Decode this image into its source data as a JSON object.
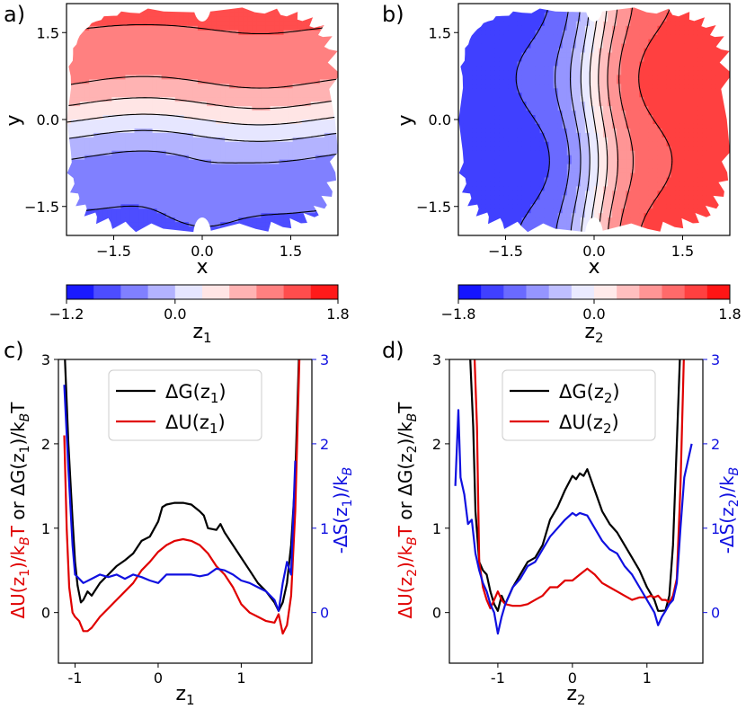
{
  "figure": {
    "panel_labels": [
      "a)",
      "b)",
      "c)",
      "d)"
    ]
  },
  "chart_data": [
    {
      "panel": "a)",
      "type": "heatmap",
      "subtype": "filled-contour",
      "xlabel": "x",
      "ylabel": "y",
      "xlim": [
        -2.3,
        2.3
      ],
      "ylim": [
        -2.0,
        2.0
      ],
      "xticks": [
        -1.5,
        0.0,
        1.5
      ],
      "xtick_labels": [
        "−1.5",
        "0.0",
        "1.5"
      ],
      "yticks": [
        1.5,
        0.0,
        -1.5
      ],
      "ytick_labels": [
        "1.5",
        "0.0",
        "−1.5"
      ],
      "colorbar": {
        "label": "z",
        "label_sub": "1",
        "range": [
          -1.2,
          1.8
        ],
        "tick_values": [
          -1.2,
          0.0,
          1.8
        ],
        "tick_labels": [
          "−1.2",
          "0.0",
          "1.8"
        ],
        "levels": 10
      },
      "description_field": "z1 increases with y (horizontal bands: blue at bottom, red at top)"
    },
    {
      "panel": "b)",
      "type": "heatmap",
      "subtype": "filled-contour",
      "xlabel": "x",
      "ylabel": "y",
      "xlim": [
        -2.3,
        2.3
      ],
      "ylim": [
        -2.0,
        2.0
      ],
      "xticks": [
        -1.5,
        0.0,
        1.5
      ],
      "xtick_labels": [
        "−1.5",
        "0.0",
        "1.5"
      ],
      "yticks": [
        1.5,
        0.0,
        -1.5
      ],
      "ytick_labels": [
        "1.5",
        "0.0",
        "−1.5"
      ],
      "colorbar": {
        "label": "z",
        "label_sub": "2",
        "range": [
          -1.8,
          1.8
        ],
        "tick_values": [
          -1.8,
          0.0,
          1.8
        ],
        "tick_labels": [
          "−1.8",
          "0.0",
          "1.8"
        ],
        "levels": 12
      },
      "description_field": "z2 increases with x (vertical bands: blue at left, red at right)"
    },
    {
      "panel": "c)",
      "type": "line",
      "xlabel": "z",
      "xlabel_sub": "1",
      "ylabel_left": "ΔU(z₁)/k_BT or ΔG(z₁)/k_BT",
      "ylabel_right": "-ΔS(z₁)/k_B",
      "xlim": [
        -1.2,
        1.85
      ],
      "ylim": [
        -0.6,
        3.0
      ],
      "ylim_right": [
        -0.6,
        3.0
      ],
      "xticks": [
        -1,
        0,
        1
      ],
      "yticks": [
        0,
        1,
        2,
        3
      ],
      "yticks_right": [
        0,
        1,
        2,
        3
      ],
      "legend": {
        "position": "top-center",
        "entries": [
          {
            "name": "ΔG(z",
            "sub": "1",
            "color": "#000000"
          },
          {
            "name": "ΔU(z",
            "sub": "1",
            "color": "#e00000"
          }
        ]
      },
      "series": [
        {
          "name": "ΔG(z1)",
          "axis": "left",
          "color": "#000000",
          "x": [
            -1.13,
            -1.08,
            -1.03,
            -1.0,
            -0.97,
            -0.93,
            -0.9,
            -0.85,
            -0.8,
            -0.7,
            -0.6,
            -0.5,
            -0.4,
            -0.3,
            -0.2,
            -0.1,
            0.0,
            0.05,
            0.1,
            0.2,
            0.3,
            0.4,
            0.5,
            0.55,
            0.6,
            0.7,
            0.75,
            0.8,
            0.9,
            1.0,
            1.1,
            1.2,
            1.3,
            1.4,
            1.45,
            1.5,
            1.55,
            1.6,
            1.65,
            1.7
          ],
          "y": [
            3.2,
            2.0,
            1.1,
            0.6,
            0.32,
            0.12,
            0.15,
            0.25,
            0.2,
            0.35,
            0.45,
            0.55,
            0.62,
            0.7,
            0.85,
            0.9,
            1.08,
            1.25,
            1.28,
            1.3,
            1.3,
            1.28,
            1.2,
            1.15,
            1.0,
            0.98,
            1.05,
            0.95,
            0.8,
            0.65,
            0.5,
            0.35,
            0.25,
            0.12,
            0.02,
            0.12,
            0.35,
            0.8,
            1.6,
            3.2
          ]
        },
        {
          "name": "ΔU(z1)",
          "axis": "left",
          "color": "#e00000",
          "x": [
            -1.13,
            -1.1,
            -1.07,
            -1.03,
            -1.0,
            -0.95,
            -0.9,
            -0.85,
            -0.8,
            -0.7,
            -0.6,
            -0.5,
            -0.4,
            -0.3,
            -0.2,
            -0.1,
            0.0,
            0.1,
            0.2,
            0.3,
            0.4,
            0.5,
            0.6,
            0.7,
            0.8,
            0.9,
            1.0,
            1.1,
            1.2,
            1.3,
            1.4,
            1.45,
            1.5,
            1.55,
            1.6,
            1.65,
            1.7
          ],
          "y": [
            2.1,
            1.0,
            0.3,
            0.0,
            -0.05,
            -0.1,
            -0.22,
            -0.22,
            -0.18,
            -0.05,
            0.05,
            0.15,
            0.25,
            0.35,
            0.5,
            0.6,
            0.72,
            0.8,
            0.85,
            0.87,
            0.85,
            0.8,
            0.7,
            0.55,
            0.45,
            0.3,
            0.1,
            0.0,
            -0.05,
            -0.1,
            -0.12,
            -0.02,
            -0.25,
            -0.15,
            0.2,
            1.2,
            3.0
          ]
        },
        {
          "name": "-ΔS(z1)",
          "axis": "right",
          "color": "#1010e0",
          "x": [
            -1.13,
            -1.08,
            -1.03,
            -1.0,
            -0.97,
            -0.9,
            -0.8,
            -0.7,
            -0.6,
            -0.5,
            -0.4,
            -0.3,
            -0.2,
            -0.1,
            0.0,
            0.1,
            0.2,
            0.3,
            0.4,
            0.5,
            0.6,
            0.7,
            0.8,
            0.9,
            1.0,
            1.1,
            1.2,
            1.3,
            1.4,
            1.45,
            1.5,
            1.55,
            1.6,
            1.65
          ],
          "y": [
            2.7,
            1.7,
            0.8,
            0.45,
            0.42,
            0.35,
            0.4,
            0.45,
            0.42,
            0.45,
            0.4,
            0.45,
            0.42,
            0.38,
            0.35,
            0.45,
            0.45,
            0.45,
            0.45,
            0.43,
            0.45,
            0.52,
            0.5,
            0.45,
            0.38,
            0.35,
            0.3,
            0.25,
            0.15,
            0.02,
            0.35,
            0.6,
            0.45,
            1.8
          ]
        }
      ]
    },
    {
      "panel": "d)",
      "type": "line",
      "xlabel": "z",
      "xlabel_sub": "2",
      "ylabel_left": "ΔU(z₂)/k_BT or ΔG(z₂)/k_BT",
      "ylabel_right": "-ΔS(z₂)/k_B",
      "xlim": [
        -1.65,
        1.75
      ],
      "ylim": [
        -0.6,
        3.0
      ],
      "ylim_right": [
        -0.6,
        3.0
      ],
      "xticks": [
        -1,
        0,
        1
      ],
      "yticks": [
        0,
        1,
        2,
        3
      ],
      "yticks_right": [
        0,
        1,
        2,
        3
      ],
      "legend": {
        "position": "top-center",
        "entries": [
          {
            "name": "ΔG(z",
            "sub": "2",
            "color": "#000000"
          },
          {
            "name": "ΔU(z",
            "sub": "2",
            "color": "#e00000"
          }
        ]
      },
      "series": [
        {
          "name": "ΔG(z2)",
          "axis": "left",
          "color": "#000000",
          "x": [
            -1.38,
            -1.33,
            -1.3,
            -1.25,
            -1.2,
            -1.15,
            -1.1,
            -1.05,
            -1.0,
            -0.95,
            -0.9,
            -0.8,
            -0.7,
            -0.6,
            -0.5,
            -0.4,
            -0.3,
            -0.2,
            -0.1,
            0.0,
            0.05,
            0.1,
            0.15,
            0.2,
            0.3,
            0.4,
            0.5,
            0.6,
            0.7,
            0.8,
            0.9,
            1.0,
            1.1,
            1.15,
            1.2,
            1.25,
            1.3,
            1.35,
            1.4,
            1.45
          ],
          "y": [
            3.2,
            2.2,
            1.2,
            0.6,
            0.5,
            0.45,
            0.25,
            0.1,
            0.02,
            0.2,
            0.1,
            0.3,
            0.45,
            0.6,
            0.65,
            0.8,
            1.1,
            1.25,
            1.45,
            1.62,
            1.58,
            1.65,
            1.62,
            1.7,
            1.45,
            1.2,
            1.05,
            0.95,
            0.8,
            0.65,
            0.5,
            0.3,
            0.15,
            0.02,
            0.02,
            0.03,
            0.2,
            0.8,
            2.0,
            3.2
          ]
        },
        {
          "name": "ΔU(z2)",
          "axis": "left",
          "color": "#e00000",
          "x": [
            -1.32,
            -1.28,
            -1.25,
            -1.2,
            -1.15,
            -1.1,
            -1.05,
            -1.0,
            -0.95,
            -0.9,
            -0.8,
            -0.7,
            -0.6,
            -0.5,
            -0.4,
            -0.3,
            -0.2,
            -0.1,
            0.0,
            0.1,
            0.2,
            0.3,
            0.4,
            0.5,
            0.6,
            0.7,
            0.8,
            0.9,
            1.0,
            1.05,
            1.1,
            1.15,
            1.2,
            1.25,
            1.3,
            1.35,
            1.4,
            1.45,
            1.5
          ],
          "y": [
            3.2,
            2.2,
            0.6,
            0.3,
            0.15,
            0.05,
            0.15,
            0.25,
            0.15,
            0.1,
            0.08,
            0.08,
            0.1,
            0.15,
            0.2,
            0.3,
            0.3,
            0.38,
            0.38,
            0.45,
            0.52,
            0.45,
            0.35,
            0.3,
            0.25,
            0.2,
            0.15,
            0.18,
            0.18,
            0.2,
            0.18,
            0.2,
            0.15,
            0.15,
            0.12,
            0.2,
            0.4,
            1.5,
            3.2
          ]
        },
        {
          "name": "-ΔS(z2)",
          "axis": "right",
          "color": "#1010e0",
          "x": [
            -1.57,
            -1.53,
            -1.5,
            -1.45,
            -1.4,
            -1.35,
            -1.3,
            -1.25,
            -1.2,
            -1.15,
            -1.1,
            -1.05,
            -1.0,
            -0.95,
            -0.9,
            -0.8,
            -0.7,
            -0.6,
            -0.5,
            -0.4,
            -0.3,
            -0.2,
            -0.1,
            0.0,
            0.05,
            0.1,
            0.2,
            0.3,
            0.4,
            0.5,
            0.6,
            0.7,
            0.8,
            0.9,
            1.0,
            1.1,
            1.15,
            1.2,
            1.25,
            1.3,
            1.35,
            1.4,
            1.45,
            1.5,
            1.55,
            1.6
          ],
          "y": [
            1.5,
            2.4,
            1.6,
            1.4,
            1.05,
            1.1,
            0.7,
            0.5,
            0.35,
            0.25,
            0.1,
            0.0,
            -0.25,
            -0.05,
            0.1,
            0.3,
            0.4,
            0.55,
            0.6,
            0.75,
            0.9,
            1.0,
            1.1,
            1.18,
            1.15,
            1.18,
            1.15,
            1.0,
            0.85,
            0.75,
            0.7,
            0.55,
            0.45,
            0.3,
            0.15,
            0.0,
            -0.15,
            -0.05,
            0.02,
            0.1,
            0.15,
            0.35,
            1.0,
            1.6,
            1.8,
            2.0
          ]
        }
      ]
    }
  ]
}
